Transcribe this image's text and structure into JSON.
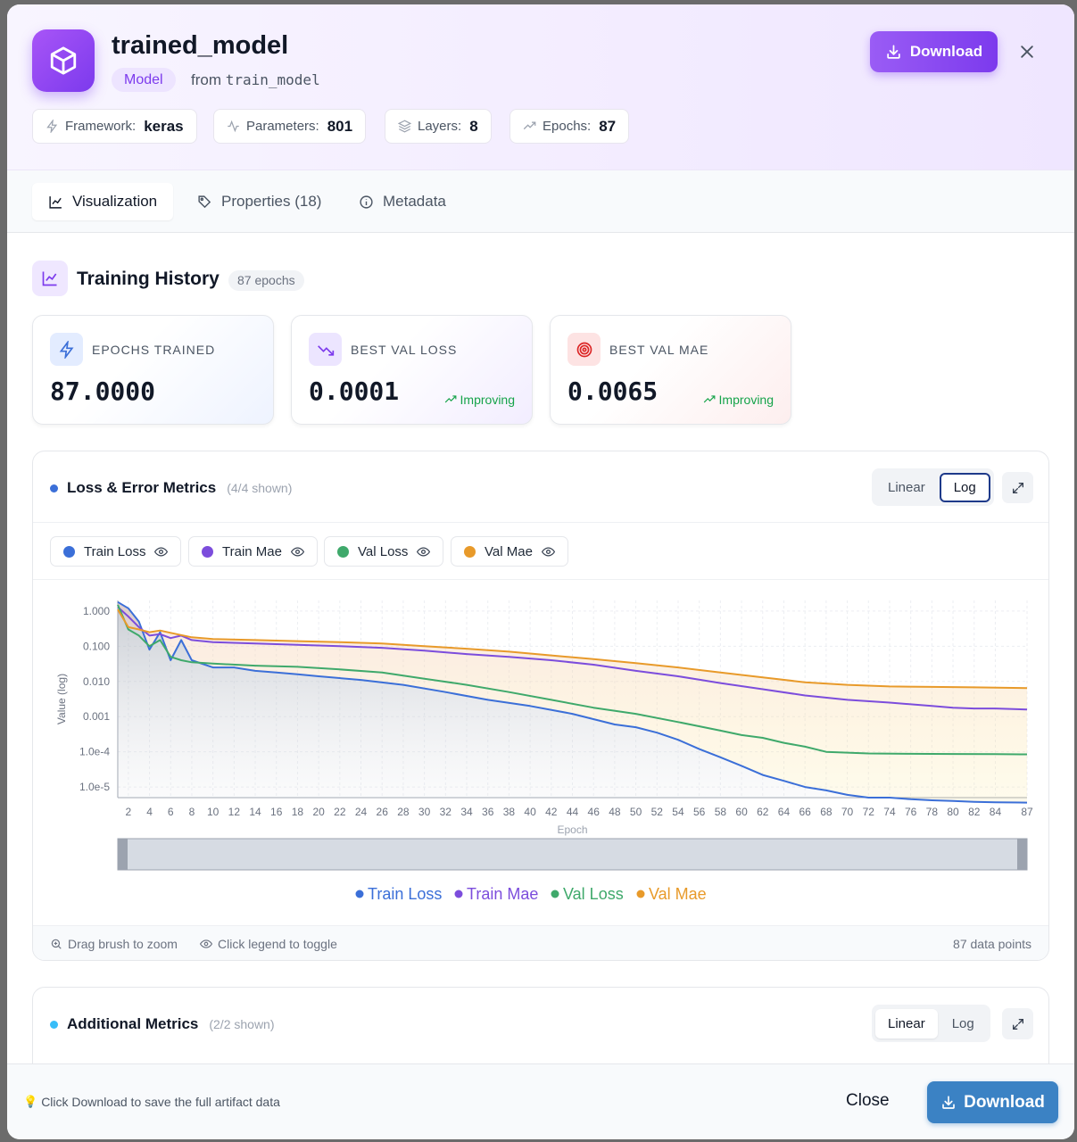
{
  "artifact": {
    "title": "trained_model",
    "type_badge": "Model",
    "from_label": "from",
    "source": "train_model",
    "download_label": "Download"
  },
  "stats": [
    {
      "label": "Framework:",
      "value": "keras",
      "icon": "zap-icon"
    },
    {
      "label": "Parameters:",
      "value": "801",
      "icon": "activity-icon"
    },
    {
      "label": "Layers:",
      "value": "8",
      "icon": "layers-icon"
    },
    {
      "label": "Epochs:",
      "value": "87",
      "icon": "trending-up-icon"
    }
  ],
  "tabs": [
    {
      "label": "Visualization",
      "icon": "line-chart-icon",
      "active": true
    },
    {
      "label": "Properties (18)",
      "icon": "tag-icon",
      "active": false
    },
    {
      "label": "Metadata",
      "icon": "info-icon",
      "active": false
    }
  ],
  "training_history": {
    "title": "Training History",
    "badge": "87 epochs"
  },
  "metric_cards": [
    {
      "label": "EPOCHS TRAINED",
      "value": "87.0000",
      "icon": "zap-icon",
      "trend": ""
    },
    {
      "label": "BEST VAL LOSS",
      "value": "0.0001",
      "icon": "trending-down-icon",
      "trend": "Improving"
    },
    {
      "label": "BEST VAL MAE",
      "value": "0.0065",
      "icon": "target-icon",
      "trend": "Improving"
    }
  ],
  "loss_chart": {
    "title": "Loss & Error Metrics",
    "shown": "(4/4 shown)",
    "scale_options": [
      "Linear",
      "Log"
    ],
    "active_scale": "Log",
    "legend": [
      "Train Loss",
      "Train Mae",
      "Val Loss",
      "Val Mae"
    ],
    "footer_zoom": "Drag brush to zoom",
    "footer_toggle": "Click legend to toggle",
    "footer_points": "87 data points"
  },
  "additional_chart": {
    "title": "Additional Metrics",
    "shown": "(2/2 shown)",
    "scale_options": [
      "Linear",
      "Log"
    ],
    "active_scale": "Linear"
  },
  "footer": {
    "hint": "Click Download to save the full artifact data",
    "close_label": "Close",
    "download_label": "Download"
  },
  "colors": {
    "train_loss": "#3b6fd8",
    "train_mae": "#7c4ddc",
    "val_loss": "#3fa96b",
    "val_mae": "#e89a2a",
    "accent": "#7c3aed"
  },
  "chart_data": {
    "type": "line",
    "xlabel": "Epoch",
    "ylabel": "Value (log)",
    "y_scale": "log",
    "ylim": [
      5e-06,
      2.0
    ],
    "y_ticks": [
      "1.000",
      "0.100",
      "0.010",
      "0.001",
      "1.0e-4",
      "1.0e-5"
    ],
    "x_ticks": [
      2,
      4,
      6,
      8,
      10,
      12,
      14,
      16,
      18,
      20,
      22,
      24,
      26,
      28,
      30,
      32,
      34,
      36,
      38,
      40,
      42,
      44,
      46,
      48,
      50,
      52,
      54,
      56,
      58,
      60,
      62,
      64,
      66,
      68,
      70,
      72,
      74,
      76,
      78,
      80,
      82,
      84,
      87
    ],
    "xlim": [
      1,
      87
    ],
    "grid": true,
    "legend_position": "bottom",
    "series": [
      {
        "name": "Train Loss",
        "x": [
          1,
          2,
          3,
          4,
          5,
          6,
          7,
          8,
          10,
          12,
          14,
          16,
          18,
          20,
          24,
          28,
          32,
          36,
          40,
          44,
          48,
          50,
          52,
          54,
          56,
          58,
          60,
          62,
          64,
          66,
          68,
          70,
          72,
          74,
          76,
          78,
          80,
          82,
          84,
          87
        ],
        "y": [
          1.8,
          1.2,
          0.5,
          0.08,
          0.25,
          0.04,
          0.15,
          0.04,
          0.025,
          0.025,
          0.02,
          0.018,
          0.016,
          0.014,
          0.011,
          0.008,
          0.005,
          0.003,
          0.002,
          0.0012,
          0.0006,
          0.0005,
          0.00035,
          0.00022,
          0.00012,
          7e-05,
          4e-05,
          2.2e-05,
          1.5e-05,
          1e-05,
          8e-06,
          6e-06,
          5e-06,
          5e-06,
          4.5e-06,
          4.2e-06,
          4e-06,
          3.8e-06,
          3.7e-06,
          3.6e-06
        ]
      },
      {
        "name": "Train Mae",
        "x": [
          1,
          2,
          3,
          4,
          5,
          6,
          7,
          8,
          10,
          14,
          18,
          22,
          26,
          30,
          34,
          38,
          42,
          46,
          50,
          54,
          58,
          62,
          66,
          70,
          74,
          78,
          80,
          82,
          84,
          87
        ],
        "y": [
          1.3,
          0.7,
          0.35,
          0.2,
          0.22,
          0.17,
          0.2,
          0.15,
          0.13,
          0.12,
          0.11,
          0.1,
          0.09,
          0.075,
          0.06,
          0.05,
          0.04,
          0.03,
          0.02,
          0.014,
          0.009,
          0.006,
          0.004,
          0.003,
          0.0025,
          0.002,
          0.0018,
          0.0017,
          0.0017,
          0.0016
        ]
      },
      {
        "name": "Val Loss",
        "x": [
          1,
          2,
          3,
          4,
          5,
          6,
          7,
          8,
          10,
          14,
          18,
          22,
          26,
          30,
          34,
          38,
          42,
          46,
          50,
          54,
          58,
          60,
          62,
          64,
          66,
          68,
          70,
          72,
          76,
          80,
          84,
          87
        ],
        "y": [
          1.5,
          0.3,
          0.2,
          0.1,
          0.15,
          0.05,
          0.04,
          0.035,
          0.032,
          0.028,
          0.026,
          0.022,
          0.018,
          0.012,
          0.008,
          0.005,
          0.003,
          0.0018,
          0.0012,
          0.0007,
          0.0004,
          0.0003,
          0.00025,
          0.00018,
          0.00014,
          0.0001,
          9.5e-05,
          9e-05,
          8.8e-05,
          8.7e-05,
          8.6e-05,
          8.5e-05
        ]
      },
      {
        "name": "Val Mae",
        "x": [
          1,
          2,
          3,
          4,
          5,
          6,
          8,
          10,
          14,
          18,
          22,
          26,
          30,
          34,
          38,
          42,
          46,
          50,
          54,
          58,
          62,
          66,
          70,
          74,
          78,
          82,
          87
        ],
        "y": [
          1.1,
          0.35,
          0.3,
          0.25,
          0.28,
          0.24,
          0.18,
          0.16,
          0.15,
          0.14,
          0.13,
          0.12,
          0.1,
          0.085,
          0.07,
          0.055,
          0.043,
          0.033,
          0.025,
          0.018,
          0.013,
          0.0095,
          0.008,
          0.0072,
          0.007,
          0.0068,
          0.0065
        ]
      }
    ]
  }
}
